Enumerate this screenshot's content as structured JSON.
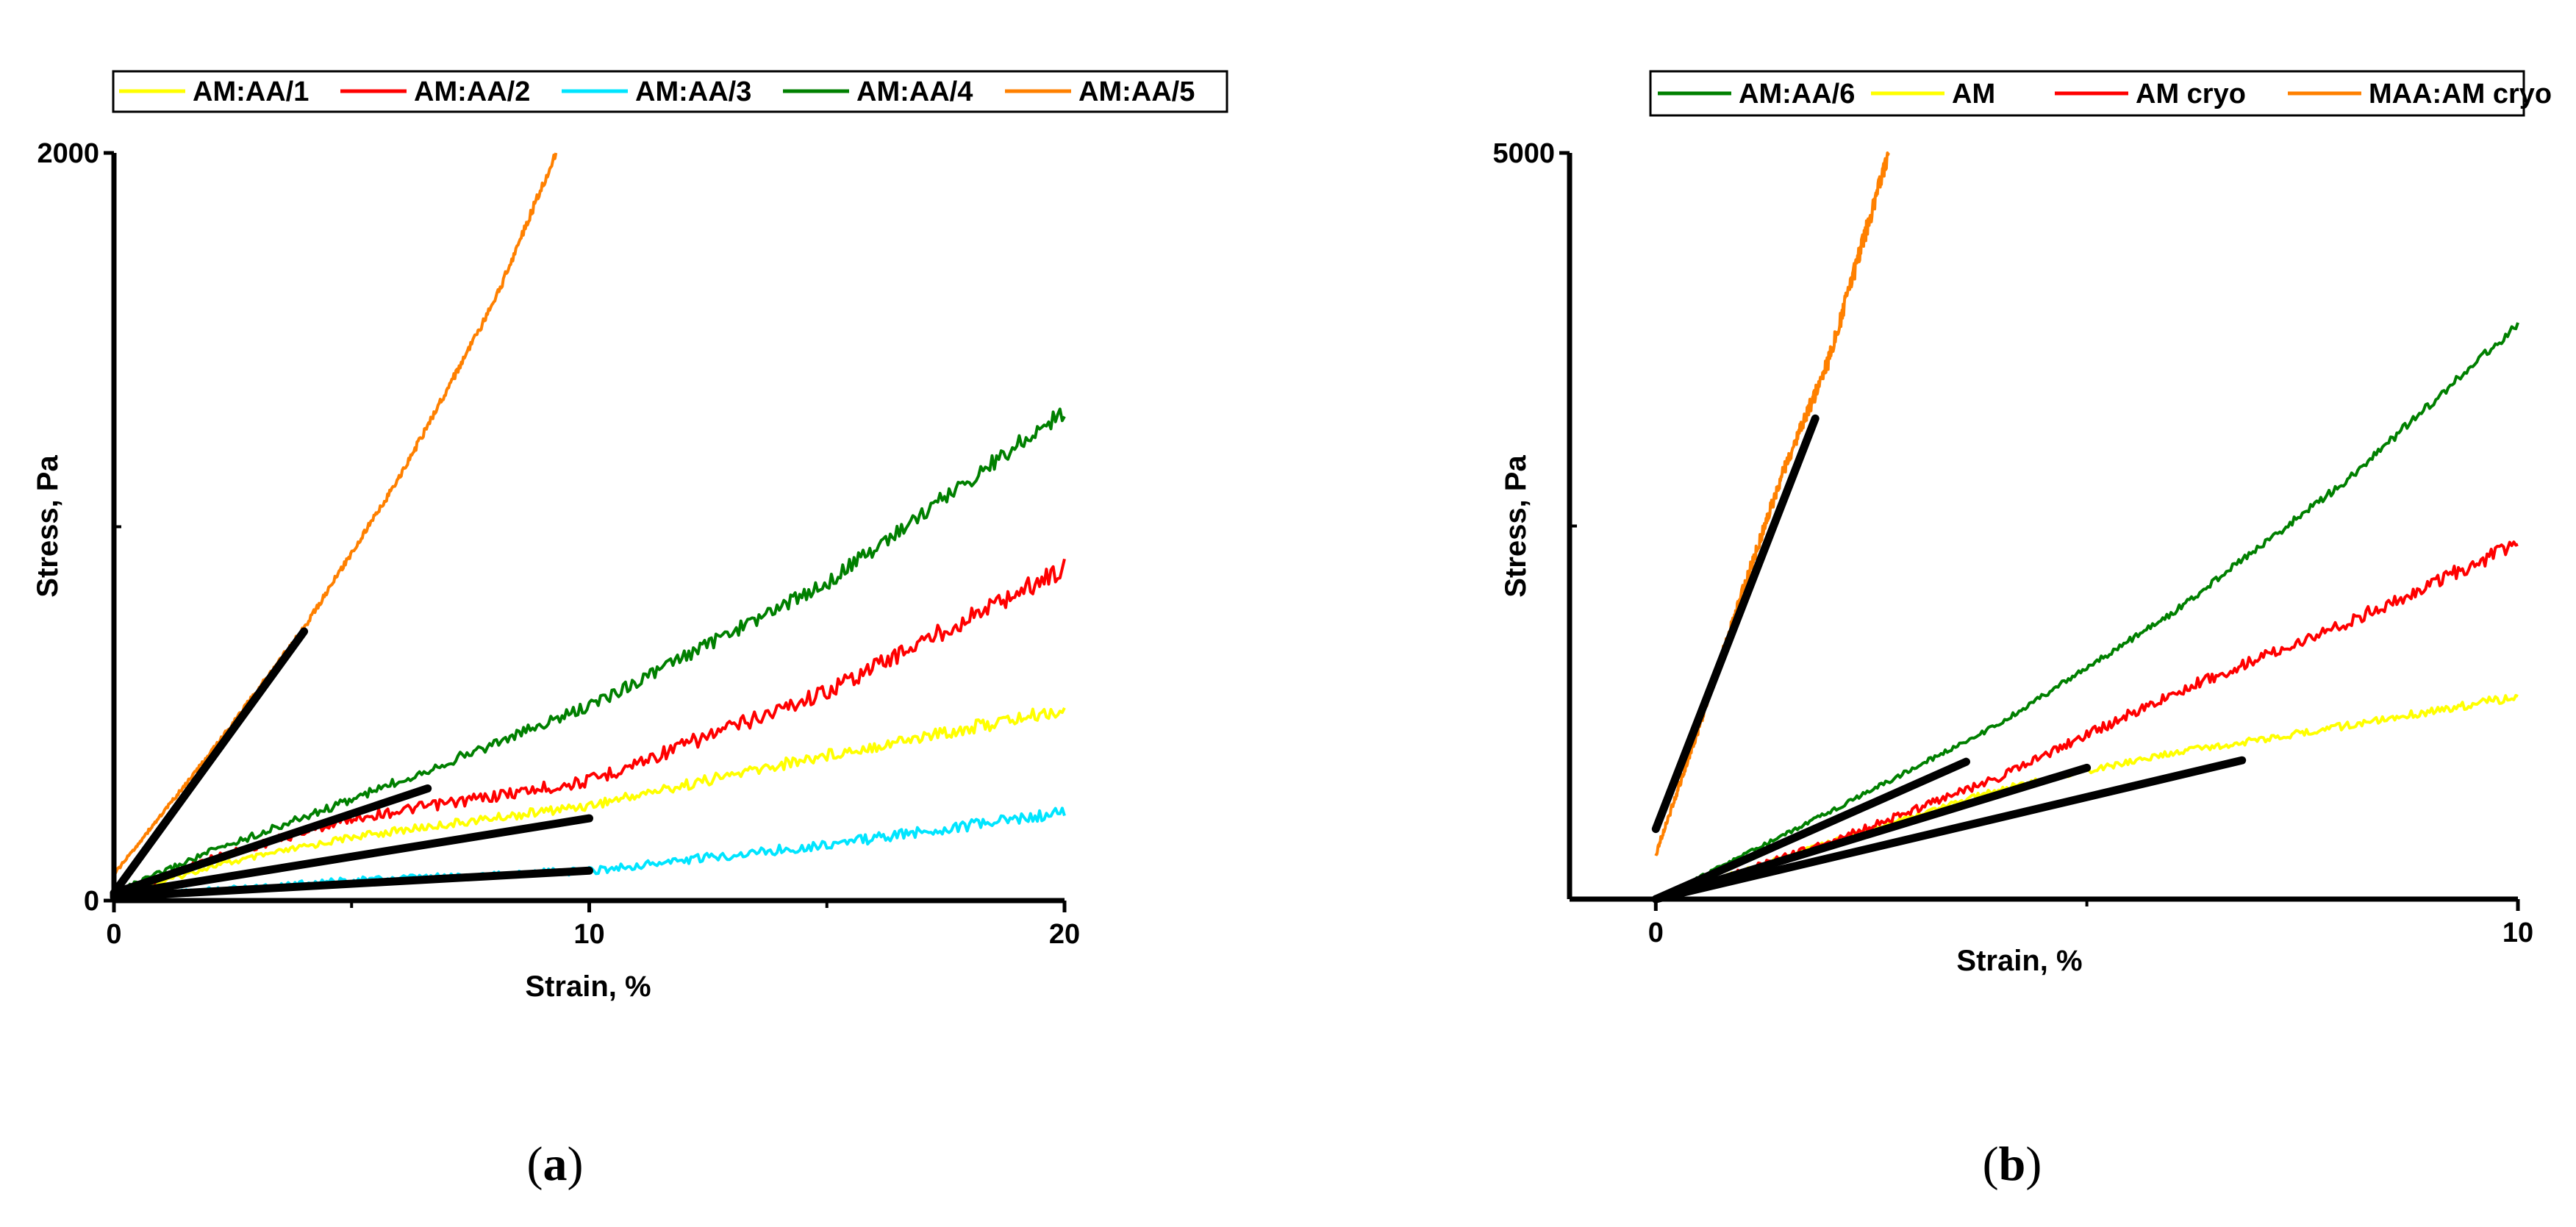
{
  "chart_data": [
    {
      "type": "line",
      "panel_label": "a",
      "xlabel": "Strain, %",
      "ylabel": "Stress, Pa",
      "xlim": [
        0,
        20
      ],
      "ylim": [
        0,
        2000
      ],
      "x_ticks": [
        0,
        10,
        20
      ],
      "x_minor_ticks": [
        5,
        15
      ],
      "y_ticks": [
        0,
        2000
      ],
      "y_minor_ticks": [
        1000
      ],
      "legend_position": "top",
      "series": [
        {
          "name": "AM:AA/1",
          "color": "#ffff00",
          "x": [
            0,
            2,
            5,
            10,
            15,
            20
          ],
          "y": [
            10,
            90,
            170,
            255,
            390,
            510
          ]
        },
        {
          "name": "AM:AA/2",
          "color": "#ff0000",
          "x": [
            0,
            2,
            5,
            10,
            15,
            20
          ],
          "y": [
            15,
            110,
            220,
            320,
            560,
            890
          ]
        },
        {
          "name": "AM:AA/3",
          "color": "#00e5ff",
          "x": [
            0,
            2,
            5,
            10,
            15,
            20
          ],
          "y": [
            5,
            30,
            55,
            80,
            150,
            235
          ]
        },
        {
          "name": "AM:AA/4",
          "color": "#008000",
          "x": [
            0,
            2,
            5,
            10,
            15,
            20
          ],
          "y": [
            20,
            130,
            270,
            520,
            850,
            1310
          ]
        },
        {
          "name": "AM:AA/5",
          "color": "#ff8000",
          "x": [
            0,
            1,
            2,
            3,
            4,
            6,
            8,
            9.3
          ],
          "y": [
            70,
            230,
            390,
            560,
            730,
            1130,
            1600,
            2000
          ]
        }
      ],
      "fits": [
        {
          "x": [
            0,
            4
          ],
          "y": [
            20,
            720
          ]
        },
        {
          "x": [
            0,
            6.6
          ],
          "y": [
            20,
            300
          ]
        },
        {
          "x": [
            0,
            10
          ],
          "y": [
            15,
            220
          ]
        },
        {
          "x": [
            0,
            10
          ],
          "y": [
            10,
            80
          ]
        }
      ]
    },
    {
      "type": "line",
      "panel_label": "b",
      "xlabel": "Strain, %",
      "ylabel": "Stress, Pa",
      "xlim": [
        -1,
        10
      ],
      "ylim": [
        0,
        5000
      ],
      "x_ticks": [
        0,
        10
      ],
      "x_minor_ticks": [
        5
      ],
      "y_ticks": [
        5000
      ],
      "y_minor_ticks": [
        2500
      ],
      "legend_position": "top",
      "series": [
        {
          "name": "AM:AA/6",
          "color": "#008000",
          "x": [
            0,
            2,
            4,
            6,
            8,
            10
          ],
          "y": [
            0,
            580,
            1180,
            1920,
            2800,
            3850
          ]
        },
        {
          "name": "AM",
          "color": "#ffff00",
          "x": [
            0,
            2,
            4,
            6,
            8,
            10
          ],
          "y": [
            0,
            380,
            740,
            980,
            1160,
            1360
          ]
        },
        {
          "name": "AM cryo",
          "color": "#ff0000",
          "x": [
            0,
            2,
            4,
            6,
            8,
            10
          ],
          "y": [
            0,
            380,
            820,
            1380,
            1850,
            2380
          ]
        },
        {
          "name": "MAA:AM cryo",
          "color": "#ff8000",
          "x": [
            0,
            0.5,
            1,
            1.5,
            2,
            2.7
          ],
          "y": [
            300,
            1150,
            2050,
            2900,
            3600,
            5000
          ]
        }
      ],
      "fits": [
        {
          "x": [
            0,
            1.85
          ],
          "y": [
            470,
            3220
          ]
        },
        {
          "x": [
            0,
            3.6
          ],
          "y": [
            0,
            920
          ]
        },
        {
          "x": [
            0,
            5
          ],
          "y": [
            0,
            880
          ]
        },
        {
          "x": [
            0,
            6.8
          ],
          "y": [
            0,
            930
          ]
        }
      ]
    }
  ]
}
